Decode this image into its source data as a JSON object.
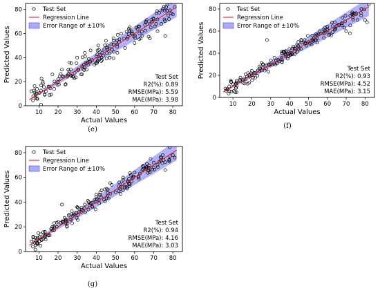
{
  "charts": [
    {
      "caption": "(e)",
      "chart_data": {
        "type": "scatter",
        "xlabel": "Actual Values",
        "ylabel": "Predicted Values",
        "xlim": [
          3,
          85
        ],
        "ylim": [
          0,
          85
        ],
        "xticks": [
          "10",
          "20",
          "30",
          "40",
          "50",
          "60",
          "70",
          "80"
        ],
        "yticks": [
          "0",
          "20",
          "40",
          "60",
          "80"
        ],
        "grid": false,
        "legend_placement": "top-left",
        "legend": [
          {
            "kind": "marker",
            "label": "Test Set"
          },
          {
            "kind": "line",
            "label": "Regression Line"
          },
          {
            "kind": "band",
            "label": "Error Range of ±10%"
          }
        ],
        "regression_line": {
          "from": [
            5,
            5
          ],
          "to": [
            82,
            82
          ]
        },
        "error_band_pct": 10,
        "colors": {
          "marker": "#000000",
          "line": "#e02020",
          "band": "#4444ee"
        },
        "stats": {
          "header": "Test Set",
          "lines": [
            "R2(%): 0.89",
            "RMSE(MPa): 5.59",
            "MAE(MPa): 3.98"
          ]
        },
        "noise": 5.6,
        "seed": 11,
        "points": [
          [
            6,
            12
          ],
          [
            7,
            8
          ],
          [
            9,
            14
          ],
          [
            12,
            20
          ],
          [
            13,
            9
          ],
          [
            15,
            16
          ],
          [
            17,
            26
          ],
          [
            18,
            14
          ],
          [
            20,
            22
          ],
          [
            22,
            30
          ],
          [
            24,
            18
          ],
          [
            26,
            36
          ],
          [
            28,
            24
          ],
          [
            30,
            40
          ],
          [
            32,
            26
          ],
          [
            34,
            44
          ],
          [
            35,
            30
          ],
          [
            37,
            46
          ],
          [
            39,
            34
          ],
          [
            41,
            50
          ],
          [
            43,
            38
          ],
          [
            45,
            54
          ],
          [
            47,
            40
          ],
          [
            49,
            56
          ],
          [
            51,
            44
          ],
          [
            53,
            60
          ],
          [
            55,
            48
          ],
          [
            57,
            64
          ],
          [
            60,
            52
          ],
          [
            62,
            66
          ],
          [
            64,
            58
          ],
          [
            66,
            70
          ],
          [
            68,
            56
          ],
          [
            70,
            72
          ],
          [
            72,
            62
          ],
          [
            74,
            68
          ],
          [
            76,
            58
          ],
          [
            78,
            72
          ],
          [
            80,
            76
          ],
          [
            81,
            82
          ]
        ]
      }
    },
    {
      "caption": "(f)",
      "chart_data": {
        "type": "scatter",
        "xlabel": "Actual Values",
        "ylabel": "Predicted Values",
        "xlim": [
          3,
          85
        ],
        "ylim": [
          0,
          85
        ],
        "xticks": [
          "10",
          "20",
          "30",
          "40",
          "50",
          "60",
          "70",
          "80"
        ],
        "yticks": [
          "0",
          "20",
          "40",
          "60",
          "80"
        ],
        "grid": false,
        "legend_placement": "top-left",
        "legend": [
          {
            "kind": "marker",
            "label": "Test Set"
          },
          {
            "kind": "line",
            "label": "Regression Line"
          },
          {
            "kind": "band",
            "label": "Error Range of ±10%"
          }
        ],
        "regression_line": {
          "from": [
            5,
            5
          ],
          "to": [
            82,
            82
          ]
        },
        "error_band_pct": 10,
        "colors": {
          "marker": "#000000",
          "line": "#e02020",
          "band": "#4444ee"
        },
        "stats": {
          "header": "Test Set",
          "lines": [
            "R2(%): 0.93",
            "RMSE(MPa): 4.52",
            "MAE(MPa): 3.15"
          ]
        },
        "noise": 4.5,
        "seed": 23,
        "points": [
          [
            6,
            8
          ],
          [
            8,
            10
          ],
          [
            10,
            12
          ],
          [
            12,
            15
          ],
          [
            14,
            18
          ],
          [
            16,
            17
          ],
          [
            18,
            22
          ],
          [
            20,
            24
          ],
          [
            22,
            22
          ],
          [
            24,
            28
          ],
          [
            26,
            30
          ],
          [
            28,
            52
          ],
          [
            30,
            30
          ],
          [
            32,
            36
          ],
          [
            34,
            34
          ],
          [
            36,
            40
          ],
          [
            38,
            42
          ],
          [
            40,
            40
          ],
          [
            42,
            46
          ],
          [
            44,
            48
          ],
          [
            46,
            44
          ],
          [
            48,
            52
          ],
          [
            50,
            50
          ],
          [
            52,
            56
          ],
          [
            54,
            52
          ],
          [
            56,
            60
          ],
          [
            58,
            58
          ],
          [
            60,
            64
          ],
          [
            62,
            56
          ],
          [
            64,
            68
          ],
          [
            66,
            66
          ],
          [
            68,
            72
          ],
          [
            70,
            60
          ],
          [
            72,
            58
          ],
          [
            74,
            76
          ],
          [
            76,
            70
          ],
          [
            78,
            80
          ],
          [
            80,
            70
          ],
          [
            81,
            68
          ],
          [
            82,
            84
          ]
        ]
      }
    },
    {
      "caption": "(g)",
      "chart_data": {
        "type": "scatter",
        "xlabel": "Actual Values",
        "ylabel": "Predicted Values",
        "xlim": [
          3,
          85
        ],
        "ylim": [
          0,
          85
        ],
        "xticks": [
          "10",
          "20",
          "30",
          "40",
          "50",
          "60",
          "70",
          "80"
        ],
        "yticks": [
          "0",
          "20",
          "40",
          "60",
          "80"
        ],
        "grid": false,
        "legend_placement": "top-left",
        "legend": [
          {
            "kind": "marker",
            "label": "Test Set"
          },
          {
            "kind": "line",
            "label": "Regression Line"
          },
          {
            "kind": "band",
            "label": "Error Range of ±10%"
          }
        ],
        "regression_line": {
          "from": [
            5,
            5
          ],
          "to": [
            82,
            82
          ]
        },
        "error_band_pct": 10,
        "colors": {
          "marker": "#000000",
          "line": "#e02020",
          "band": "#4444ee"
        },
        "stats": {
          "header": "Test Set",
          "lines": [
            "R2(%): 0.94",
            "RMSE(MPa): 4.16",
            "MAE(MPa): 3.03"
          ]
        },
        "noise": 4.2,
        "seed": 37,
        "points": [
          [
            6,
            8
          ],
          [
            7,
            12
          ],
          [
            9,
            10
          ],
          [
            11,
            14
          ],
          [
            13,
            16
          ],
          [
            15,
            13
          ],
          [
            17,
            20
          ],
          [
            18,
            23
          ],
          [
            20,
            24
          ],
          [
            22,
            38
          ],
          [
            24,
            26
          ],
          [
            26,
            30
          ],
          [
            28,
            30
          ],
          [
            30,
            36
          ],
          [
            32,
            32
          ],
          [
            34,
            38
          ],
          [
            36,
            40
          ],
          [
            38,
            36
          ],
          [
            40,
            44
          ],
          [
            42,
            48
          ],
          [
            44,
            42
          ],
          [
            46,
            50
          ],
          [
            48,
            54
          ],
          [
            50,
            48
          ],
          [
            52,
            56
          ],
          [
            54,
            58
          ],
          [
            56,
            52
          ],
          [
            58,
            62
          ],
          [
            60,
            64
          ],
          [
            62,
            60
          ],
          [
            64,
            66
          ],
          [
            66,
            68
          ],
          [
            68,
            64
          ],
          [
            70,
            72
          ],
          [
            72,
            70
          ],
          [
            74,
            76
          ],
          [
            76,
            66
          ],
          [
            78,
            74
          ],
          [
            80,
            78
          ],
          [
            81,
            76
          ]
        ]
      }
    }
  ]
}
